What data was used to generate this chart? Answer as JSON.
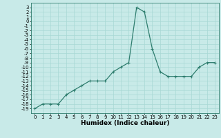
{
  "x": [
    0,
    1,
    2,
    3,
    4,
    5,
    6,
    7,
    8,
    9,
    10,
    11,
    12,
    13,
    14,
    15,
    16,
    17,
    18,
    19,
    20,
    21,
    22,
    23
  ],
  "y": [
    -19,
    -18,
    -18,
    -18,
    -16,
    -15,
    -14,
    -13,
    -13,
    -13,
    -11,
    -10,
    -9,
    3,
    2,
    -6,
    -11,
    -12,
    -12,
    -12,
    -12,
    -10,
    -9,
    -9
  ],
  "line_color": "#2e7d6e",
  "marker": "+",
  "marker_size": 3,
  "linewidth": 0.9,
  "bg_color": "#c8eae8",
  "grid_color": "#a8d8d4",
  "xlabel": "Humidex (Indice chaleur)",
  "xlabel_fontsize": 6.5,
  "tick_fontsize": 5,
  "ylim": [
    -20,
    4
  ],
  "xlim": [
    -0.5,
    23.5
  ],
  "yticks": [
    3,
    2,
    1,
    0,
    -1,
    -2,
    -3,
    -4,
    -5,
    -6,
    -7,
    -8,
    -9,
    -10,
    -11,
    -12,
    -13,
    -14,
    -15,
    -16,
    -17,
    -18,
    -19
  ],
  "xticks": [
    0,
    1,
    2,
    3,
    4,
    5,
    6,
    7,
    8,
    9,
    10,
    11,
    12,
    13,
    14,
    15,
    16,
    17,
    18,
    19,
    20,
    21,
    22,
    23
  ]
}
